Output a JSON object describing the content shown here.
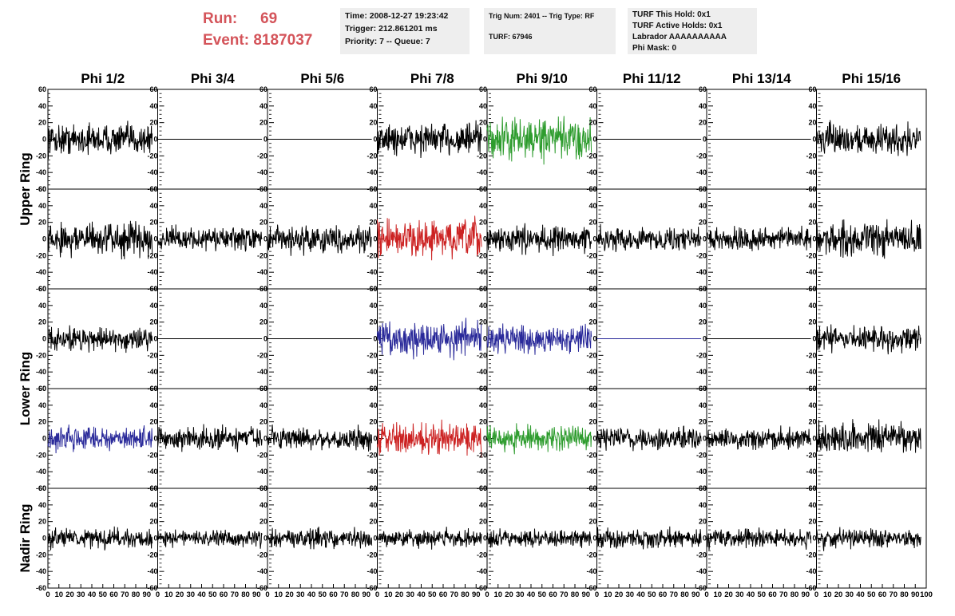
{
  "header": {
    "run_label": "Run:",
    "run_value": "69",
    "event_label": "Event:",
    "event_value": "8187037",
    "time": "Time: 2008-12-27 19:23:42",
    "trigger": "Trigger: 212.861201 ms",
    "priority": "Priority: 7 -- Queue: 7",
    "trig_num": "Trig Num: 2401 -- Trig Type: RF",
    "turf": "TURF: 67946",
    "turf_this_hold": "TURF This Hold: 0x1",
    "turf_active_holds": "TURF Active Holds: 0x1",
    "labrador": "Labrador AAAAAAAAAA",
    "phi_mask": "Phi Mask: 0"
  },
  "chart_data": {
    "type": "line",
    "columns": [
      "Phi 1/2",
      "Phi 3/4",
      "Phi 5/6",
      "Phi 7/8",
      "Phi 9/10",
      "Phi 11/12",
      "Phi 13/14",
      "Phi 15/16"
    ],
    "ring_labels": [
      "Upper Ring",
      "Lower Ring",
      "Nadir Ring"
    ],
    "ylim": [
      -60,
      60
    ],
    "xlim": [
      0,
      100
    ],
    "y_ticks": [
      -60,
      -40,
      -20,
      0,
      20,
      40,
      60
    ],
    "x_ticks": [
      0,
      10,
      20,
      30,
      40,
      50,
      60,
      70,
      80,
      90,
      100
    ],
    "rows": [
      {
        "ring": "Upper",
        "amplitude": [
          16,
          0,
          0,
          18,
          22,
          0,
          0,
          16
        ],
        "color": [
          "#000000",
          "#000000",
          "#000000",
          "#000000",
          "#2e9c2e",
          "#000000",
          "#000000",
          "#000000"
        ]
      },
      {
        "ring": "Upper",
        "amplitude": [
          18,
          12,
          14,
          20,
          14,
          12,
          12,
          18
        ],
        "color": [
          "#000000",
          "#000000",
          "#000000",
          "#cc2222",
          "#000000",
          "#000000",
          "#000000",
          "#000000"
        ]
      },
      {
        "ring": "Lower",
        "amplitude": [
          13,
          0,
          0,
          20,
          14,
          0,
          0,
          13
        ],
        "color": [
          "#000000",
          "#000000",
          "#000000",
          "#2a2a9a",
          "#2a2a9a",
          "#2a2a9a",
          "#000000",
          "#000000"
        ]
      },
      {
        "ring": "Lower",
        "amplitude": [
          13,
          12,
          12,
          16,
          14,
          12,
          11,
          16
        ],
        "color": [
          "#2a2a9a",
          "#000000",
          "#000000",
          "#cc2222",
          "#2e9c2e",
          "#000000",
          "#000000",
          "#000000"
        ]
      },
      {
        "ring": "Nadir",
        "amplitude": [
          11,
          9,
          10,
          10,
          9,
          10,
          10,
          10
        ],
        "color": [
          "#000000",
          "#000000",
          "#000000",
          "#000000",
          "#000000",
          "#000000",
          "#000000",
          "#000000"
        ]
      }
    ]
  }
}
